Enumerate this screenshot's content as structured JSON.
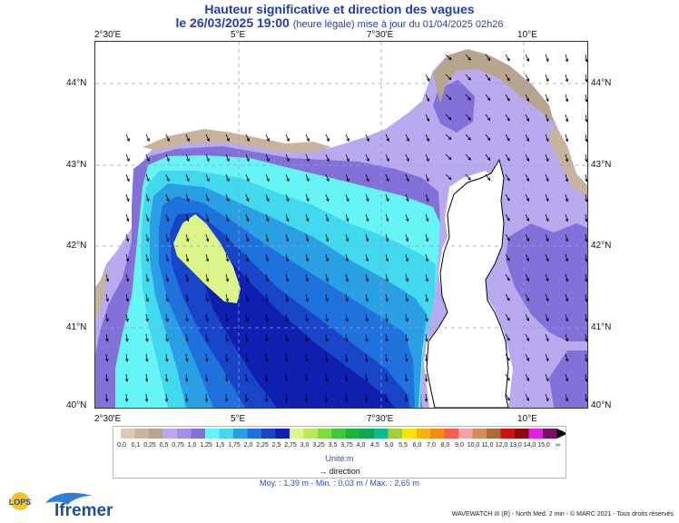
{
  "title": {
    "line1": "Hauteur significative et direction des vagues",
    "datetime": "le 26/03/2025 19:00",
    "subtitle": "(heure légale) mise à jour du 01/04/2025 02h26"
  },
  "map": {
    "lon_labels": [
      "2°30'E",
      "5°E",
      "7°30'E",
      "10°E"
    ],
    "lat_labels": [
      "44°N",
      "43°N",
      "42°N",
      "41°N",
      "40°N"
    ]
  },
  "legend": {
    "values": [
      "0,0",
      "0,1",
      "0,25",
      "0,5",
      "0,75",
      "1,0",
      "1,25",
      "1,5",
      "1,75",
      "2,0",
      "2,25",
      "2,5",
      "2,75",
      "3,0",
      "3,25",
      "3,5",
      "3,75",
      "4,0",
      "4,5",
      "5,0",
      "5,5",
      "6,0",
      "7,0",
      "8,0",
      "9,0",
      "10,0",
      "11,0",
      "12,0",
      "13,0",
      "14,0",
      "15,0",
      "∞"
    ],
    "colors": [
      "#dcc9b6",
      "#c8b49c",
      "#b7a58d",
      "#b9a9ef",
      "#a68de6",
      "#8470d9",
      "#66f4f4",
      "#42d9ef",
      "#2a9fe3",
      "#1f72dc",
      "#1844c8",
      "#0f1fb0",
      "#dcf58a",
      "#b8e860",
      "#7fdc3a",
      "#3ec63c",
      "#17b33c",
      "#0aa650",
      "#0fbb8a",
      "#a6cc3c",
      "#f2e60a",
      "#f7b20c",
      "#f28a0e",
      "#f35e52",
      "#f2a3a3",
      "#d48c5e",
      "#b06a3a",
      "#c81414",
      "#8c0a0a",
      "#e020e0",
      "#7a1060"
    ],
    "unit": "Unité:m",
    "direction_label": "direction"
  },
  "stats": "Moy. : 1,39 m   -   Min. : 0,03 m / Max. : 2,65 m",
  "footer": "WAVEWATCH III (R) - North Med. 2 min - © MARC 2021 - Tous droits réservés",
  "logos": {
    "lops": "LOPS",
    "ifremer": "Ifremer"
  }
}
